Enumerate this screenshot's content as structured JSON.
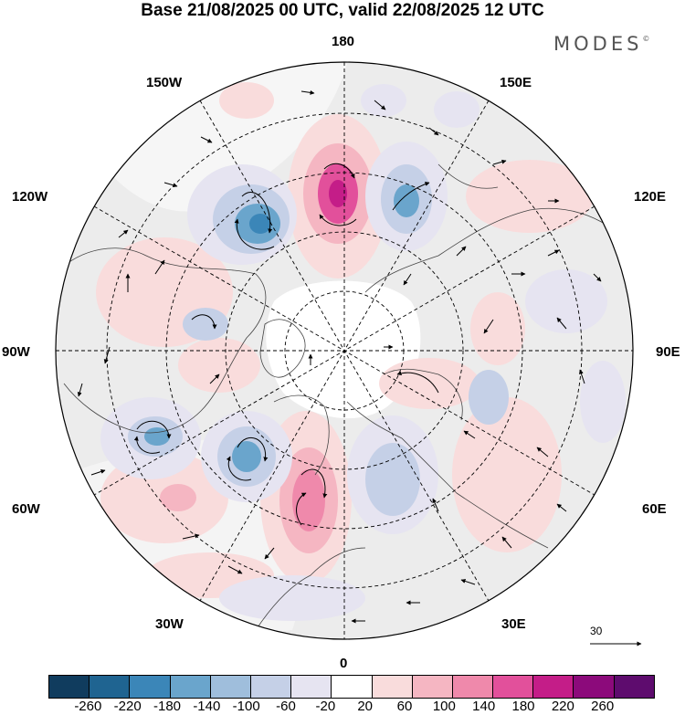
{
  "title": "Base 21/08/2025 00 UTC, valid 22/08/2025 12 UTC",
  "brand": "MODES",
  "brand_mark": "©",
  "longitude_labels": {
    "n180": "180",
    "w150": "150W",
    "e150": "150E",
    "w120": "120W",
    "e120": "120E",
    "w90": "90W",
    "e90": "90E",
    "w60": "60W",
    "e60": "60E",
    "w30": "30W",
    "e30": "30E",
    "s0": "0"
  },
  "reference_vector": {
    "label": "30"
  },
  "colorbar": {
    "levels": [
      "-260",
      "-220",
      "-180",
      "-140",
      "-100",
      "-60",
      "-20",
      "20",
      "60",
      "100",
      "140",
      "180",
      "220",
      "260"
    ],
    "colors": [
      "#103c5e",
      "#1f6491",
      "#3b86b8",
      "#6aa5cc",
      "#9fbedc",
      "#c5d0e7",
      "#e6e4f1",
      "#ffffff",
      "#f9dcdc",
      "#f5b6c2",
      "#ef89ab",
      "#e2509b",
      "#c41d88",
      "#8c0a7b",
      "#5e0c6e"
    ]
  },
  "colors": {
    "land": "#ececec",
    "ocean": "#ffffff",
    "coast": "#444444"
  }
}
